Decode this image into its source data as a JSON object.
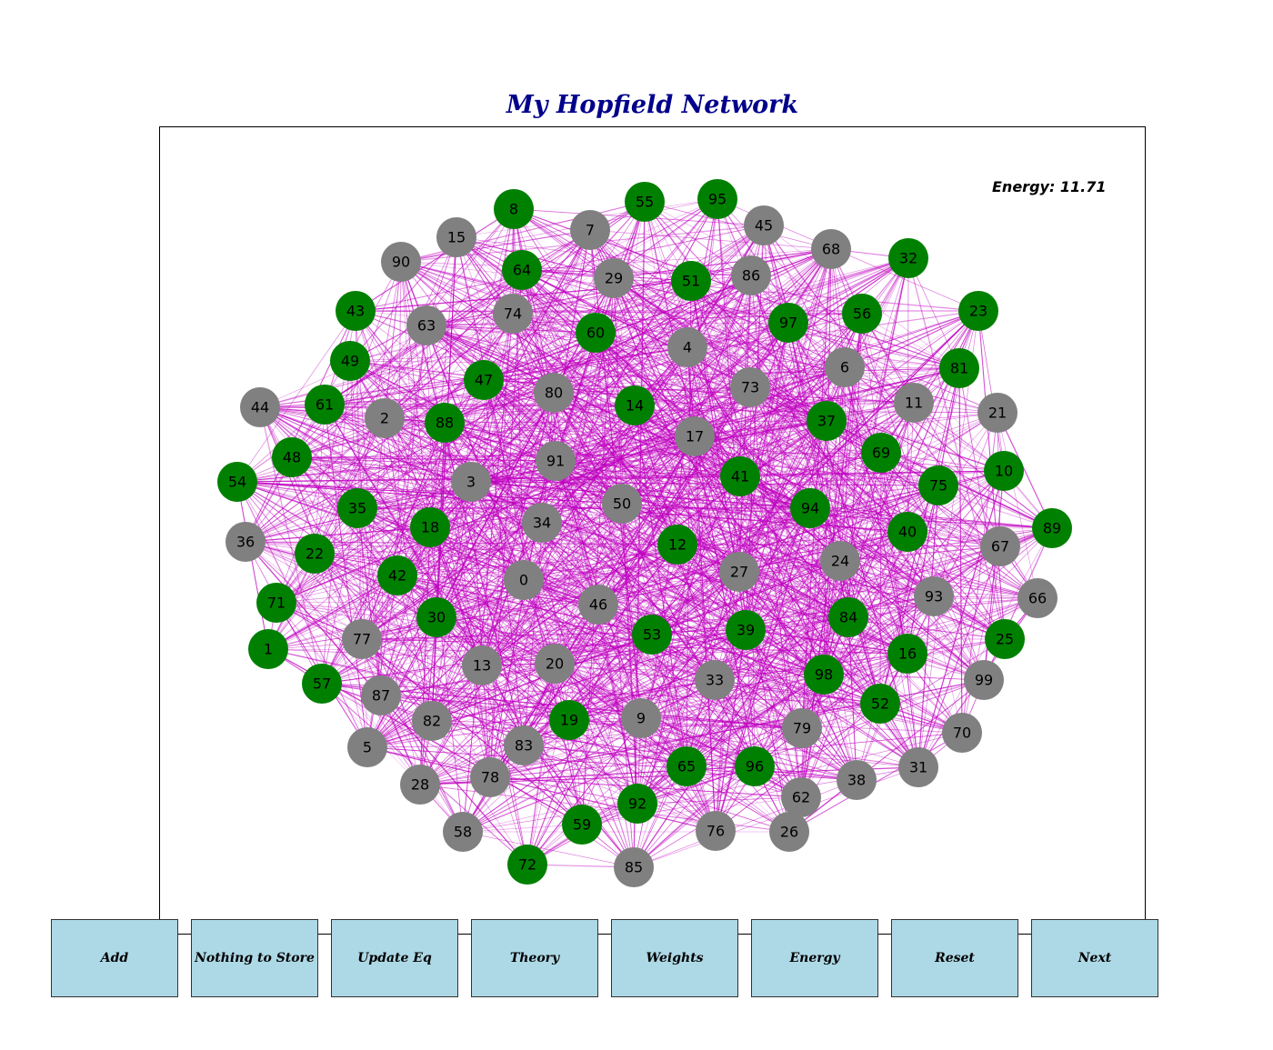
{
  "title": "My Hopfield Network",
  "energy_text": "Energy: 11.71",
  "colors": {
    "title": "#00008b",
    "active_node": "#008000",
    "inactive_node": "#808080",
    "edge": "#bf00bf",
    "button_bg": "#add8e6"
  },
  "buttons": [
    {
      "label": "Add"
    },
    {
      "label": "Nothing to Store"
    },
    {
      "label": "Update Eq"
    },
    {
      "label": "Theory"
    },
    {
      "label": "Weights"
    },
    {
      "label": "Energy"
    },
    {
      "label": "Reset"
    },
    {
      "label": "Next"
    }
  ],
  "graph": {
    "active_nodes": [
      8,
      55,
      95,
      32,
      23,
      64,
      51,
      43,
      60,
      97,
      56,
      49,
      47,
      81,
      61,
      14,
      37,
      48,
      88,
      69,
      54,
      41,
      75,
      10,
      35,
      94,
      18,
      40,
      89,
      22,
      12,
      42,
      71,
      84,
      30,
      53,
      39,
      25,
      1,
      16,
      57,
      98,
      52,
      19,
      65,
      96,
      92,
      59,
      72
    ],
    "inactive_nodes": [
      15,
      7,
      45,
      68,
      90,
      29,
      86,
      63,
      74,
      4,
      6,
      44,
      2,
      80,
      73,
      11,
      21,
      17,
      91,
      3,
      50,
      34,
      36,
      67,
      24,
      27,
      0,
      93,
      66,
      46,
      77,
      13,
      20,
      33,
      99,
      87,
      82,
      9,
      79,
      70,
      83,
      5,
      31,
      78,
      28,
      38,
      62,
      58,
      76,
      26,
      85
    ]
  }
}
